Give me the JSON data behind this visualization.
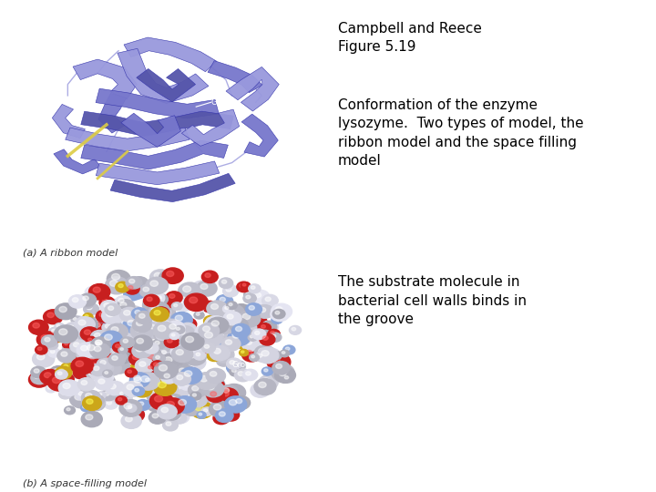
{
  "bg_color": "#ffffff",
  "title_line1": "Campbell and Reece",
  "title_line2": "Figure 5.19",
  "description_top": "Conformation of the enzyme\nlysozyme.  Two types of model, the\nribbon model and the space filling\nmodel",
  "description_bottom": "The substrate molecule in\nbacterial cell walls binds in\nthe groove",
  "caption_top": "(a) A ribbon model",
  "caption_bottom": "(b) A space-filling model",
  "panel_bg": "#111111",
  "title_fontsize": 11,
  "desc_fontsize": 11,
  "caption_fontsize": 8,
  "groove_label_fontsize": 7,
  "purple_light": "#9999dd",
  "purple_mid": "#7777cc",
  "purple_dark": "#5555aa",
  "yellow_ribbon": "#ddcc44"
}
